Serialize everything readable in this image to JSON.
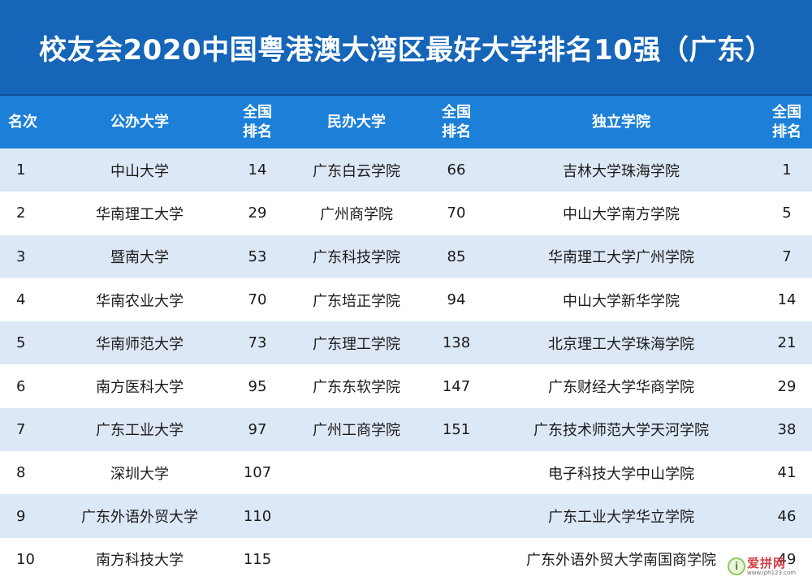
{
  "title": "校友会2020中国粤港澳大湾区最好大学排名10强（广东）",
  "headers": {
    "rank": "名次",
    "public": "公办大学",
    "public_rank": "全国\n排名",
    "private": "民办大学",
    "private_rank": "全国\n排名",
    "independent": "独立学院",
    "independent_rank": "全国\n排名"
  },
  "rows": [
    {
      "rank": "1",
      "public": "中山大学",
      "public_rank": "14",
      "private": "广东白云学院",
      "private_rank": "66",
      "independent": "吉林大学珠海学院",
      "independent_rank": "1"
    },
    {
      "rank": "2",
      "public": "华南理工大学",
      "public_rank": "29",
      "private": "广州商学院",
      "private_rank": "70",
      "independent": "中山大学南方学院",
      "independent_rank": "5"
    },
    {
      "rank": "3",
      "public": "暨南大学",
      "public_rank": "53",
      "private": "广东科技学院",
      "private_rank": "85",
      "independent": "华南理工大学广州学院",
      "independent_rank": "7"
    },
    {
      "rank": "4",
      "public": "华南农业大学",
      "public_rank": "70",
      "private": "广东培正学院",
      "private_rank": "94",
      "independent": "中山大学新华学院",
      "independent_rank": "14"
    },
    {
      "rank": "5",
      "public": "华南师范大学",
      "public_rank": "73",
      "private": "广东理工学院",
      "private_rank": "138",
      "independent": "北京理工大学珠海学院",
      "independent_rank": "21"
    },
    {
      "rank": "6",
      "public": "南方医科大学",
      "public_rank": "95",
      "private": "广东东软学院",
      "private_rank": "147",
      "independent": "广东财经大学华商学院",
      "independent_rank": "29"
    },
    {
      "rank": "7",
      "public": "广东工业大学",
      "public_rank": "97",
      "private": "广州工商学院",
      "private_rank": "151",
      "independent": "广东技术师范大学天河学院",
      "independent_rank": "38"
    },
    {
      "rank": "8",
      "public": "深圳大学",
      "public_rank": "107",
      "private": "",
      "private_rank": "",
      "independent": "电子科技大学中山学院",
      "independent_rank": "41"
    },
    {
      "rank": "9",
      "public": "广东外语外贸大学",
      "public_rank": "110",
      "private": "",
      "private_rank": "",
      "independent": "广东工业大学华立学院",
      "independent_rank": "46"
    },
    {
      "rank": "10",
      "public": "南方科技大学",
      "public_rank": "115",
      "private": "",
      "private_rank": "",
      "independent": "广东外语外贸大学南国商学院",
      "independent_rank": "49"
    }
  ],
  "watermark": {
    "logo_glyph": "i",
    "text": "爱拼网",
    "url": "www.iph123.com"
  },
  "colors": {
    "title_bg": "#1565b8",
    "header_bg": "#1c7fd8",
    "row_alt_bg": "#dde8f6"
  }
}
